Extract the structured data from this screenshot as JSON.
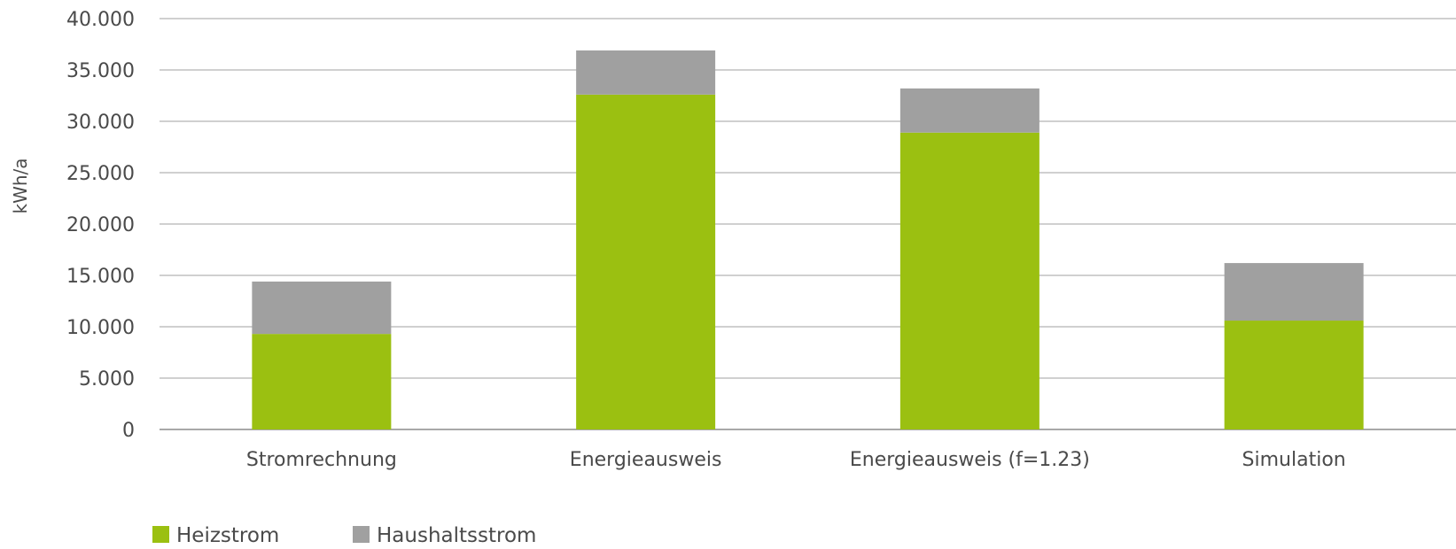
{
  "chart_data": {
    "type": "bar",
    "stacked": true,
    "title": "",
    "xlabel": "",
    "ylabel": "kWh/a",
    "ylim": [
      0,
      40000
    ],
    "yticks": [
      0,
      5000,
      10000,
      15000,
      20000,
      25000,
      30000,
      35000,
      40000
    ],
    "ytick_labels": [
      "0",
      "5.000",
      "10.000",
      "15.000",
      "20.000",
      "25.000",
      "30.000",
      "35.000",
      "40.000"
    ],
    "categories": [
      "Stromrechnung",
      "Energieausweis",
      "Energieausweis (f=1.23)",
      "Simulation"
    ],
    "series": [
      {
        "name": "Heizstrom",
        "color": "#9bc011",
        "values": [
          9300,
          32600,
          28900,
          10600
        ]
      },
      {
        "name": "Haushaltsstrom",
        "color": "#a0a0a0",
        "values": [
          5100,
          4300,
          4300,
          5600
        ]
      }
    ],
    "grid": true,
    "legend_position": "bottom-left"
  }
}
